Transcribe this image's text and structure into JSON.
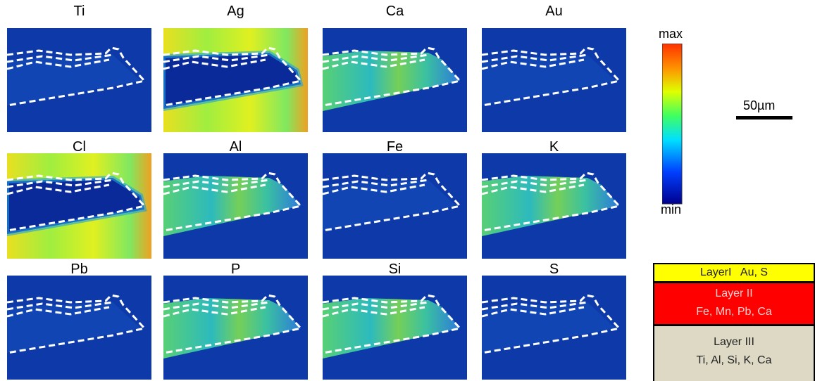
{
  "panels": [
    {
      "label": "Ti"
    },
    {
      "label": "Ag"
    },
    {
      "label": "Ca"
    },
    {
      "label": "Au"
    },
    {
      "label": "Cl"
    },
    {
      "label": "Al"
    },
    {
      "label": "Fe"
    },
    {
      "label": "K"
    },
    {
      "label": "Pb"
    },
    {
      "label": "P"
    },
    {
      "label": "Si"
    },
    {
      "label": "S"
    }
  ],
  "colorbar": {
    "max_label": "max",
    "min_label": "min"
  },
  "scale_bar": {
    "label": "50µm"
  },
  "layers": [
    {
      "name": "LayerI",
      "elements": "Au, S"
    },
    {
      "name": "Layer II",
      "elements": "Fe, Mn, Pb, Ca"
    },
    {
      "name": "Layer III",
      "elements": "Ti, Al, Si, K, Ca"
    }
  ]
}
